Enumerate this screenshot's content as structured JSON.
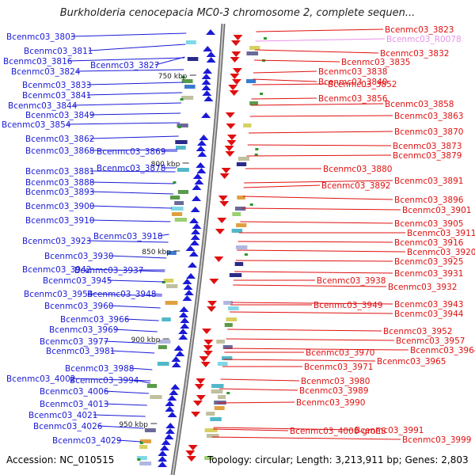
{
  "title": "Burkholderia cenocepacia MC0-3 chromosome 2, complete sequen...",
  "footer": {
    "accession": "Accession: NC_010515",
    "topology": "Topology: circular; Length: 3,213,911 bp; Genes: 2,803"
  },
  "colors": {
    "left_genes": "#1a1ad6",
    "right_genes": "#e01010",
    "rna": "#e890e8",
    "backbone": "#8a8a8a"
  },
  "kbp_marks": [
    "750 kbp",
    "800 kbp",
    "850 kbp",
    "900 kbp",
    "950 kbp"
  ],
  "left_labels": [
    "Bcenmc03_3803",
    "Bcenmc03_3811",
    "Bcenmc03_3816",
    "Bcenmc03_3824",
    "Bcenmc03_3827",
    "Bcenmc03_3833",
    "Bcenmc03_3841",
    "Bcenmc03_3844",
    "Bcenmc03_3849",
    "Bcenmc03_3854",
    "Bcenmc03_3862",
    "Bcenmc03_3868",
    "Bcenmc03_3869",
    "Bcenmc03_3878",
    "Bcenmc03_3881",
    "Bcenmc03_3888",
    "Bcenmc03_3893",
    "Bcenmc03_3900",
    "Bcenmc03_3910",
    "Bcenmc03_3918",
    "Bcenmc03_3923",
    "Bcenmc03_3930",
    "Bcenmc03_3937",
    "Bcenmc03_3942",
    "Bcenmc03_3945",
    "Bcenmc03_3948",
    "Bcenmc03_3954",
    "Bcenmc03_3960",
    "Bcenmc03_3966",
    "Bcenmc03_3969",
    "Bcenmc03_3977",
    "Bcenmc03_3981",
    "Bcenmc03_3988",
    "Bcenmc03_3994",
    "Bcenmc03_4002",
    "Bcenmc03_4006",
    "Bcenmc03_4013",
    "Bcenmc03_4021",
    "Bcenmc03_4026",
    "Bcenmc03_4029"
  ],
  "right_labels": [
    "Bcenmc03_3823",
    "Bcenmc03_R0078",
    "Bcenmc03_3832",
    "Bcenmc03_3835",
    "Bcenmc03_3838",
    "Bcenmc03_3840",
    "Bcenmc03_3852",
    "Bcenmc03_3856",
    "Bcenmc03_3858",
    "Bcenmc03_3863",
    "Bcenmc03_3870",
    "Bcenmc03_3873",
    "Bcenmc03_3879",
    "Bcenmc03_3880",
    "Bcenmc03_3891",
    "Bcenmc03_3892",
    "Bcenmc03_3896",
    "Bcenmc03_3901",
    "Bcenmc03_3905",
    "Bcenmc03_3911",
    "Bcenmc03_3916",
    "Bcenmc03_3920",
    "Bcenmc03_3925",
    "Bcenmc03_3931",
    "Bcenmc03_3932",
    "Bcenmc03_3938",
    "Bcenmc03_3943",
    "Bcenmc03_3944",
    "Bcenmc03_3949",
    "Bcenmc03_3952",
    "Bcenmc03_3957",
    "Bcenmc03_3964",
    "Bcenmc03_3965",
    "Bcenmc03_3970",
    "Bcenmc03_3971",
    "Bcenmc03_3980",
    "Bcenmc03_3989",
    "Bcenmc03_3990",
    "Bcenmc03_3991",
    "Bcenmc03_3999",
    "Bcenmc03_4000-groES"
  ]
}
